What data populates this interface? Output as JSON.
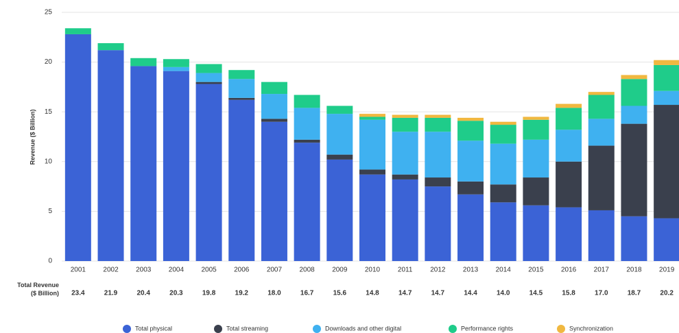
{
  "chart_data": {
    "type": "bar",
    "stacked": true,
    "ylabel": "Revenue ($ Billion)",
    "categories": [
      "2001",
      "2002",
      "2003",
      "2004",
      "2005",
      "2006",
      "2007",
      "2008",
      "2009",
      "2010",
      "2011",
      "2012",
      "2013",
      "2014",
      "2015",
      "2016",
      "2017",
      "2018",
      "2019"
    ],
    "ylim": [
      0,
      25
    ],
    "yticks": [
      0,
      5,
      10,
      15,
      20,
      25
    ],
    "grid": true,
    "legend": "bottom",
    "series": [
      {
        "name": "Total physical",
        "color": "#3b63d6",
        "values": [
          22.8,
          21.2,
          19.6,
          19.1,
          17.8,
          16.2,
          14.0,
          11.9,
          10.2,
          8.7,
          8.2,
          7.5,
          6.7,
          5.9,
          5.6,
          5.4,
          5.1,
          4.5,
          4.3
        ]
      },
      {
        "name": "Total streaming",
        "color": "#3a404d",
        "values": [
          0,
          0,
          0,
          0,
          0.2,
          0.2,
          0.3,
          0.3,
          0.5,
          0.5,
          0.5,
          0.9,
          1.3,
          1.8,
          2.8,
          4.6,
          6.5,
          9.3,
          11.4
        ]
      },
      {
        "name": "Downloads and other digital",
        "color": "#3fb1f0",
        "values": [
          0,
          0,
          0,
          0.4,
          0.9,
          1.9,
          2.5,
          3.2,
          4.1,
          5.0,
          4.3,
          4.6,
          4.1,
          4.1,
          3.8,
          3.2,
          2.7,
          1.8,
          1.4
        ]
      },
      {
        "name": "Performance rights",
        "color": "#1fcc8a",
        "values": [
          0.6,
          0.7,
          0.8,
          0.8,
          0.9,
          0.9,
          1.2,
          1.3,
          0.8,
          0.3,
          1.4,
          1.4,
          2.0,
          1.9,
          2.0,
          2.2,
          2.4,
          2.7,
          2.6
        ]
      },
      {
        "name": "Synchronization",
        "color": "#f0b840",
        "values": [
          0,
          0,
          0,
          0,
          0,
          0,
          0,
          0,
          0,
          0.3,
          0.3,
          0.3,
          0.3,
          0.3,
          0.3,
          0.4,
          0.3,
          0.4,
          0.5
        ]
      }
    ],
    "totals_label": "Total Revenue\n($ Billion)",
    "totals": [
      "23.4",
      "21.9",
      "20.4",
      "20.3",
      "19.8",
      "19.2",
      "18.0",
      "16.7",
      "15.6",
      "14.8",
      "14.7",
      "14.7",
      "14.4",
      "14.0",
      "14.5",
      "15.8",
      "17.0",
      "18.7",
      "20.2"
    ]
  }
}
